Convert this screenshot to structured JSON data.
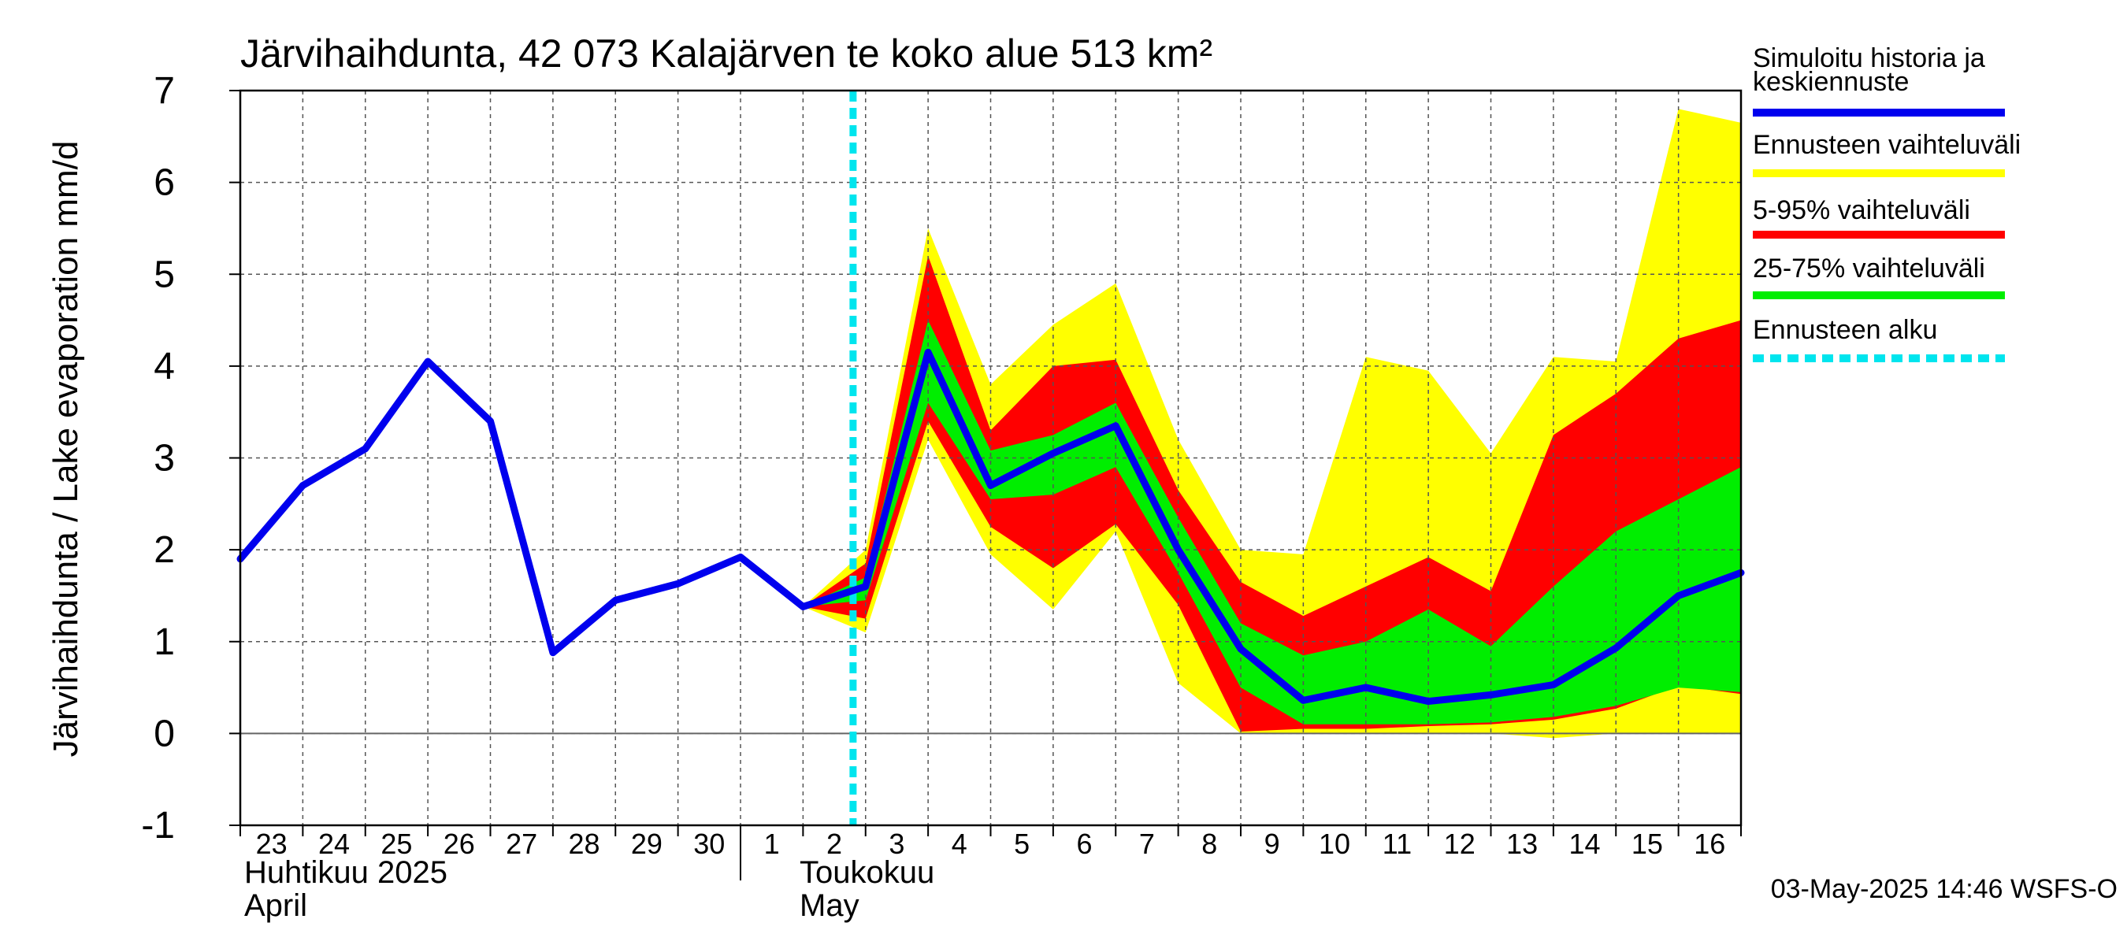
{
  "chart_data": {
    "type": "area",
    "title": "Järvihaihdunta, 42 073 Kalajärven te koko alue 513 km²",
    "ylabel": "Järvihaihdunta / Lake evaporation   mm/d",
    "ylim": [
      -1,
      7
    ],
    "yticks": [
      "-1",
      "0",
      "1",
      "2",
      "3",
      "4",
      "5",
      "6",
      "7"
    ],
    "x_tick_labels": [
      "23",
      "24",
      "25",
      "26",
      "27",
      "28",
      "29",
      "30",
      "1",
      "2",
      "3",
      "4",
      "5",
      "6",
      "7",
      "8",
      "9",
      "10",
      "11",
      "12",
      "13",
      "14",
      "15",
      "16"
    ],
    "month_labels": [
      {
        "fi": "Huhtikuu  2025",
        "en": "April"
      },
      {
        "fi": "Toukokuu",
        "en": "May"
      }
    ],
    "grid": true,
    "legend_position": "right",
    "forecast_start_x": 9.8,
    "series": [
      {
        "name": "Simuloitu historia ja keskiennuste",
        "color": "#0000ee",
        "x": [
          0,
          1,
          2,
          3,
          4,
          5,
          6,
          7,
          8,
          9,
          10,
          11,
          12,
          13,
          14,
          15,
          16,
          17,
          18,
          19,
          20,
          21,
          22,
          23,
          24
        ],
        "values": [
          1.9,
          2.7,
          3.1,
          4.05,
          3.4,
          0.88,
          1.45,
          1.63,
          1.92,
          1.38,
          1.6,
          4.15,
          2.7,
          3.05,
          3.35,
          2.0,
          0.92,
          0.36,
          0.5,
          0.35,
          0.42,
          0.53,
          0.93,
          1.5,
          1.75
        ]
      },
      {
        "name": "Ennusteen vaihteluväli",
        "color": "#ffff00",
        "x": [
          9,
          10,
          11,
          12,
          13,
          14,
          15,
          16,
          17,
          18,
          19,
          20,
          21,
          22,
          23,
          24
        ],
        "upper": [
          1.38,
          2.0,
          5.5,
          3.8,
          4.45,
          4.9,
          3.2,
          2.0,
          1.95,
          4.1,
          3.95,
          3.05,
          4.1,
          4.05,
          6.8,
          6.65
        ],
        "lower": [
          1.38,
          1.1,
          3.2,
          1.95,
          1.35,
          2.2,
          0.55,
          0.0,
          0.0,
          0.0,
          0.0,
          0.0,
          -0.05,
          0.0,
          0.0,
          0.0
        ]
      },
      {
        "name": "5-95% vaihteluväli",
        "color": "#ff0000",
        "x": [
          9,
          10,
          11,
          12,
          13,
          14,
          15,
          16,
          17,
          18,
          19,
          20,
          21,
          22,
          23,
          24
        ],
        "upper": [
          1.38,
          1.85,
          5.2,
          3.3,
          4.0,
          4.07,
          2.65,
          1.65,
          1.28,
          1.6,
          1.92,
          1.55,
          3.25,
          3.7,
          4.3,
          4.5
        ],
        "lower": [
          1.38,
          1.25,
          3.4,
          2.25,
          1.8,
          2.28,
          1.4,
          0.02,
          0.05,
          0.05,
          0.08,
          0.1,
          0.15,
          0.27,
          0.52,
          0.43
        ]
      },
      {
        "name": "25-75% vaihteluväli",
        "color": "#00ee00",
        "x": [
          9,
          10,
          11,
          12,
          13,
          14,
          15,
          16,
          17,
          18,
          19,
          20,
          21,
          22,
          23,
          24
        ],
        "upper": [
          1.38,
          1.7,
          4.5,
          3.08,
          3.25,
          3.6,
          2.35,
          1.2,
          0.85,
          1.0,
          1.35,
          0.95,
          1.6,
          2.2,
          2.55,
          2.9
        ],
        "lower": [
          1.38,
          1.45,
          3.6,
          2.55,
          2.6,
          2.9,
          1.75,
          0.5,
          0.1,
          0.1,
          0.1,
          0.12,
          0.18,
          0.3,
          0.5,
          0.45
        ]
      }
    ],
    "legend": [
      {
        "label": "Simuloitu historia ja",
        "label2": "keskiennuste",
        "color": "#0000ee",
        "style": "solid"
      },
      {
        "label": "Ennusteen vaihteluväli",
        "label2": "",
        "color": "#ffff00",
        "style": "solid"
      },
      {
        "label": "5-95% vaihteluväli",
        "label2": "",
        "color": "#ff0000",
        "style": "solid"
      },
      {
        "label": "25-75% vaihteluväli",
        "label2": "",
        "color": "#00ee00",
        "style": "solid"
      },
      {
        "label": "Ennusteen alku",
        "label2": "",
        "color": "#00e5ee",
        "style": "dashed"
      }
    ],
    "footer": "03-May-2025 14:46 WSFS-O"
  }
}
